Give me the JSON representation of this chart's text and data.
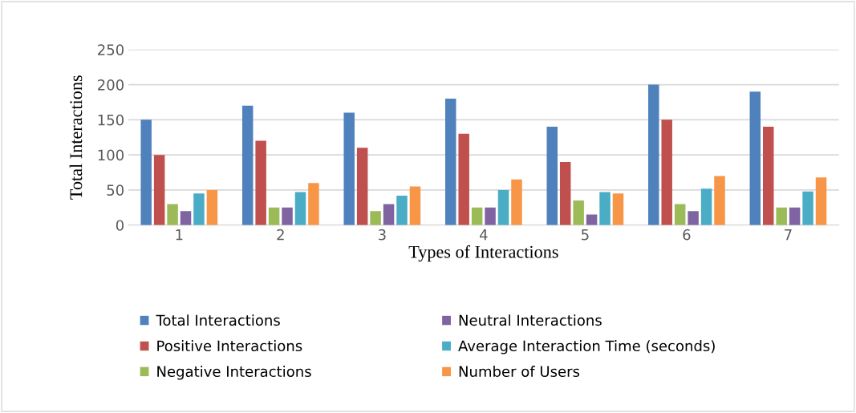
{
  "chart_data": {
    "type": "bar",
    "xlabel": "Types of Interactions",
    "ylabel": "Total Interactions",
    "categories": [
      "1",
      "2",
      "3",
      "4",
      "5",
      "6",
      "7"
    ],
    "series": [
      {
        "name": "Total Interactions",
        "color": "#4f81bd",
        "values": [
          150,
          170,
          160,
          180,
          140,
          200,
          190
        ]
      },
      {
        "name": "Positive Interactions",
        "color": "#c0504d",
        "values": [
          100,
          120,
          110,
          130,
          90,
          150,
          140
        ]
      },
      {
        "name": "Negative Interactions",
        "color": "#9bbb59",
        "values": [
          30,
          25,
          20,
          25,
          35,
          30,
          25
        ]
      },
      {
        "name": "Neutral Interactions",
        "color": "#8064a2",
        "values": [
          20,
          25,
          30,
          25,
          15,
          20,
          25
        ]
      },
      {
        "name": "Average Interaction Time (seconds)",
        "color": "#4bacc6",
        "values": [
          45,
          47,
          42,
          50,
          47,
          52,
          48
        ]
      },
      {
        "name": "Number of Users",
        "color": "#f79646",
        "values": [
          50,
          60,
          55,
          65,
          45,
          70,
          68
        ]
      }
    ],
    "ylim": [
      0,
      250
    ],
    "yticks": [
      0,
      50,
      100,
      150,
      200,
      250
    ],
    "grid": "y",
    "legend": "bottom"
  }
}
